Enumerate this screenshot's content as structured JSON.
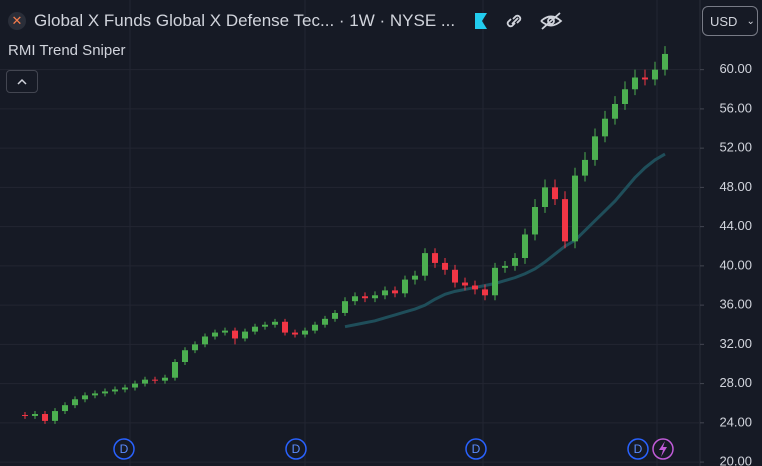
{
  "header": {
    "symbol": "Global X Funds Global X Defense Tec... · 1W · NYSE ...",
    "currency": "USD",
    "indicator": "RMI Trend Sniper"
  },
  "chart_data": {
    "type": "candlestick",
    "open": [
      24.8,
      24.7,
      24.9,
      24.2,
      25.2,
      25.8,
      26.4,
      26.8,
      27.0,
      27.2,
      27.4,
      27.6,
      28.0,
      28.4,
      28.3,
      28.6,
      30.2,
      31.4,
      32.0,
      32.8,
      33.2,
      33.4,
      32.6,
      33.3,
      33.8,
      34.0,
      34.3,
      33.2,
      33.0,
      33.4,
      34.0,
      34.6,
      35.2,
      36.4,
      36.9,
      36.7,
      37.0,
      37.5,
      37.2,
      38.6,
      39.0,
      41.3,
      40.3,
      39.6,
      38.3,
      38.0,
      37.6,
      37.0,
      39.8,
      40.0,
      40.8,
      43.2,
      46.0,
      48.0,
      46.8,
      42.5,
      49.2,
      50.8,
      53.2,
      55.0,
      56.5,
      58.0,
      59.2,
      59.0,
      60.0
    ],
    "high": [
      25.1,
      25.2,
      25.2,
      25.5,
      26.1,
      26.7,
      27.1,
      27.3,
      27.5,
      27.7,
      27.9,
      28.3,
      28.7,
      28.7,
      28.9,
      30.5,
      31.7,
      32.3,
      33.1,
      33.5,
      33.7,
      33.7,
      33.6,
      34.1,
      34.3,
      34.6,
      34.6,
      33.5,
      33.7,
      34.3,
      34.9,
      35.5,
      36.8,
      37.3,
      37.3,
      37.4,
      37.9,
      37.9,
      39.0,
      39.5,
      41.8,
      41.8,
      40.8,
      40.1,
      38.8,
      38.5,
      38.1,
      40.3,
      40.5,
      41.3,
      43.8,
      46.8,
      48.8,
      48.8,
      47.6,
      50.0,
      51.6,
      54.0,
      55.8,
      57.3,
      58.8,
      60.0,
      60.0,
      60.8,
      62.4
    ],
    "low": [
      24.4,
      24.4,
      23.9,
      23.9,
      24.9,
      25.5,
      26.1,
      26.5,
      26.7,
      26.9,
      27.1,
      27.3,
      27.7,
      28.0,
      28.0,
      28.3,
      29.9,
      31.1,
      31.7,
      32.5,
      32.9,
      32.0,
      32.3,
      33.0,
      33.5,
      33.7,
      32.9,
      32.7,
      32.7,
      33.1,
      33.7,
      34.3,
      34.9,
      36.0,
      36.3,
      36.3,
      36.6,
      36.8,
      36.8,
      38.1,
      38.5,
      39.8,
      39.1,
      37.8,
      37.5,
      37.1,
      36.5,
      36.5,
      39.3,
      39.5,
      40.2,
      42.6,
      45.4,
      46.2,
      41.8,
      41.8,
      48.6,
      50.2,
      52.6,
      54.4,
      55.9,
      57.4,
      58.4,
      58.4,
      59.4
    ],
    "close": [
      24.7,
      24.9,
      24.2,
      25.2,
      25.8,
      26.4,
      26.8,
      27.0,
      27.2,
      27.4,
      27.6,
      28.0,
      28.4,
      28.3,
      28.6,
      30.2,
      31.4,
      32.0,
      32.8,
      33.2,
      33.4,
      32.6,
      33.3,
      33.8,
      34.0,
      34.3,
      33.2,
      33.0,
      33.4,
      34.0,
      34.6,
      35.2,
      36.4,
      36.9,
      36.7,
      37.0,
      37.5,
      37.2,
      38.6,
      39.0,
      41.3,
      40.3,
      39.6,
      38.3,
      38.0,
      37.6,
      37.0,
      39.8,
      40.0,
      40.8,
      43.2,
      46.0,
      48.0,
      46.8,
      42.5,
      49.2,
      50.8,
      53.2,
      55.0,
      56.5,
      58.0,
      59.2,
      59.0,
      60.0,
      61.6
    ],
    "up_color": "#4caf50",
    "down_color": "#f23645",
    "trend_line": {
      "color": "#1f4e5a",
      "values": [
        null,
        null,
        null,
        null,
        null,
        null,
        null,
        null,
        null,
        null,
        null,
        null,
        null,
        null,
        null,
        null,
        null,
        null,
        null,
        null,
        null,
        null,
        null,
        null,
        null,
        null,
        null,
        null,
        null,
        null,
        null,
        null,
        33.8,
        34.0,
        34.2,
        34.4,
        34.7,
        35.0,
        35.3,
        35.6,
        36.0,
        36.6,
        37.1,
        37.4,
        37.6,
        37.8,
        38.0,
        38.2,
        38.5,
        38.8,
        39.2,
        39.7,
        40.4,
        41.2,
        42.0,
        42.6,
        43.6,
        44.6,
        45.6,
        46.6,
        47.8,
        49.0,
        50.0,
        50.8,
        51.4
      ]
    },
    "ylim": [
      19.6,
      67.1
    ],
    "yticks": [
      {
        "value": 20,
        "label": "20.00"
      },
      {
        "value": 24,
        "label": "24.00"
      },
      {
        "value": 28,
        "label": "28.00"
      },
      {
        "value": 32,
        "label": "32.00"
      },
      {
        "value": 36,
        "label": "36.00"
      },
      {
        "value": 40,
        "label": "40.00"
      },
      {
        "value": 44,
        "label": "44.00"
      },
      {
        "value": 48,
        "label": "48.00"
      },
      {
        "value": 52,
        "label": "52.00"
      },
      {
        "value": 56,
        "label": "56.00"
      },
      {
        "value": 60,
        "label": "60.00"
      }
    ],
    "grid": true,
    "dividend_markers": [
      "D",
      "D",
      "D",
      "D"
    ]
  }
}
